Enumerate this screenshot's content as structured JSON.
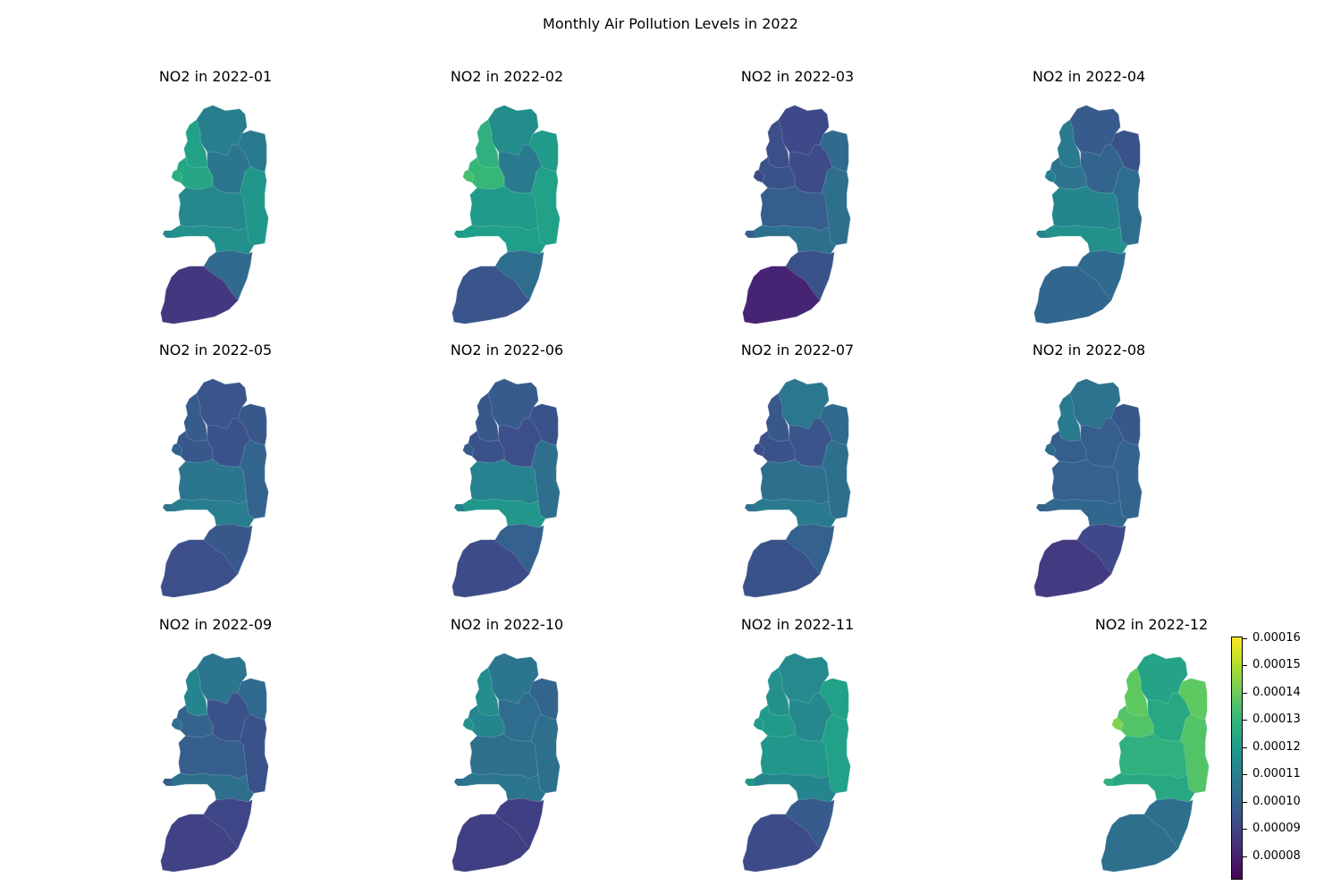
{
  "figure": {
    "title": "Monthly Air Pollution Levels in 2022"
  },
  "colorbar": {
    "colormap": "viridis",
    "vmin": 7.15e-05,
    "vmax": 0.0001605,
    "ticks": [
      "0.00008",
      "0.00009",
      "0.00010",
      "0.00011",
      "0.00012",
      "0.00013",
      "0.00014",
      "0.00015",
      "0.00016"
    ]
  },
  "panel_titles": [
    "NO2 in 2022-01",
    "NO2 in 2022-02",
    "NO2 in 2022-03",
    "NO2 in 2022-04",
    "NO2 in 2022-05",
    "NO2 in 2022-06",
    "NO2 in 2022-07",
    "NO2 in 2022-08",
    "NO2 in 2022-09",
    "NO2 in 2022-10",
    "NO2 in 2022-11",
    "NO2 in 2022-12"
  ],
  "chart_data": {
    "type": "choropleth",
    "variable": "NO2",
    "region_order": [
      "north",
      "northeast",
      "center_north",
      "west_upper",
      "west_mid",
      "west_notch",
      "east_strip",
      "central",
      "south_central",
      "south_upper",
      "south_lower"
    ],
    "months": [
      {
        "month": "2022-01",
        "values": {
          "north": 0.00011,
          "northeast": 0.000108,
          "center_north": 0.000106,
          "west_upper": 0.000122,
          "west_mid": 0.000124,
          "west_notch": 0.000127,
          "east_strip": 0.000118,
          "central": 0.000113,
          "south_central": 0.000116,
          "south_upper": 0.000102,
          "south_lower": 8.6e-05
        }
      },
      {
        "month": "2022-02",
        "values": {
          "north": 0.000115,
          "northeast": 0.00012,
          "center_north": 0.000108,
          "west_upper": 0.000128,
          "west_mid": 0.000131,
          "west_notch": 0.000134,
          "east_strip": 0.000122,
          "central": 0.00012,
          "south_central": 0.000121,
          "south_upper": 0.000103,
          "south_lower": 9.5e-05
        }
      },
      {
        "month": "2022-03",
        "values": {
          "north": 9.1e-05,
          "northeast": 0.000102,
          "center_north": 9.2e-05,
          "west_upper": 9.3e-05,
          "west_mid": 9.4e-05,
          "west_notch": 9.2e-05,
          "east_strip": 0.000104,
          "central": 9.8e-05,
          "south_central": 0.000104,
          "south_upper": 9.4e-05,
          "south_lower": 8e-05
        }
      },
      {
        "month": "2022-04",
        "values": {
          "north": 9.7e-05,
          "northeast": 9.4e-05,
          "center_north": 0.0001,
          "west_upper": 0.000108,
          "west_mid": 0.000105,
          "west_notch": 0.00011,
          "east_strip": 0.000103,
          "central": 0.000112,
          "south_central": 0.000116,
          "south_upper": 0.000102,
          "south_lower": 0.000101
        }
      },
      {
        "month": "2022-05",
        "values": {
          "north": 9.5e-05,
          "northeast": 9.6e-05,
          "center_north": 9.4e-05,
          "west_upper": 9.7e-05,
          "west_mid": 9.6e-05,
          "west_notch": 9.9e-05,
          "east_strip": 0.0001,
          "central": 0.000106,
          "south_central": 0.000109,
          "south_upper": 9.6e-05,
          "south_lower": 9.3e-05
        }
      },
      {
        "month": "2022-06",
        "values": {
          "north": 9.7e-05,
          "northeast": 9.4e-05,
          "center_north": 9.3e-05,
          "west_upper": 9.6e-05,
          "west_mid": 9.4e-05,
          "west_notch": 9.7e-05,
          "east_strip": 0.000104,
          "central": 0.000111,
          "south_central": 0.000118,
          "south_upper": 9.9e-05,
          "south_lower": 9.2e-05
        }
      },
      {
        "month": "2022-07",
        "values": {
          "north": 0.000107,
          "northeast": 0.000102,
          "center_north": 9.5e-05,
          "west_upper": 9.6e-05,
          "west_mid": 9.4e-05,
          "west_notch": 9.3e-05,
          "east_strip": 0.000104,
          "central": 0.000104,
          "south_central": 0.000108,
          "south_upper": 9.9e-05,
          "south_lower": 9.4e-05
        }
      },
      {
        "month": "2022-08",
        "values": {
          "north": 0.000105,
          "northeast": 9.6e-05,
          "center_north": 9.8e-05,
          "west_upper": 0.000108,
          "west_mid": 9.8e-05,
          "west_notch": 0.000102,
          "east_strip": 0.0001,
          "central": 9.9e-05,
          "south_central": 0.000101,
          "south_upper": 9.1e-05,
          "south_lower": 8.7e-05
        }
      },
      {
        "month": "2022-09",
        "values": {
          "north": 0.000106,
          "northeast": 0.000102,
          "center_north": 9.4e-05,
          "west_upper": 0.000112,
          "west_mid": 0.0001,
          "west_notch": 0.000104,
          "east_strip": 9.4e-05,
          "central": 9.8e-05,
          "south_central": 0.000104,
          "south_upper": 9e-05,
          "south_lower": 8.9e-05
        }
      },
      {
        "month": "2022-10",
        "values": {
          "north": 0.000106,
          "northeast": 0.0001,
          "center_north": 0.000103,
          "west_upper": 0.000115,
          "west_mid": 0.000112,
          "west_notch": 0.000116,
          "east_strip": 0.000104,
          "central": 0.000104,
          "south_central": 0.000106,
          "south_upper": 8.8e-05,
          "south_lower": 8.8e-05
        }
      },
      {
        "month": "2022-11",
        "values": {
          "north": 0.000114,
          "northeast": 0.000122,
          "center_north": 0.000113,
          "west_upper": 0.000116,
          "west_mid": 0.00012,
          "west_notch": 0.00012,
          "east_strip": 0.000122,
          "central": 0.000118,
          "south_central": 0.000112,
          "south_upper": 9.7e-05,
          "south_lower": 9.2e-05
        }
      },
      {
        "month": "2022-12",
        "values": {
          "north": 0.000123,
          "northeast": 0.000138,
          "center_north": 0.000125,
          "west_upper": 0.000138,
          "west_mid": 0.000136,
          "west_notch": 0.000143,
          "east_strip": 0.000136,
          "central": 0.000128,
          "south_central": 0.000125,
          "south_upper": 0.000104,
          "south_lower": 0.000104
        }
      }
    ]
  }
}
